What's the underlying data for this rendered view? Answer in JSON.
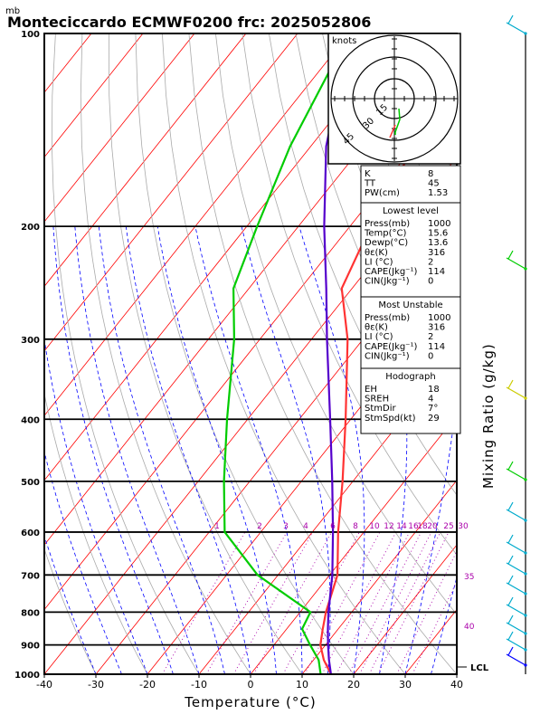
{
  "title": "Monteciccardo ECMWF0200  frc: 2025052806",
  "yunit": "mb",
  "xlabel": "Temperature (°C)",
  "right_label": "Mixing Ratio (g/kg)",
  "lcl_label": "LCL",
  "colors": {
    "temperature": "#ff3333",
    "dewpoint": "#00cc00",
    "parcel": "#5500cc",
    "isotherm": "#ff0000",
    "dry_adiabat": "#aaaaaa",
    "moist_adiabat": "#0000ff",
    "mixing": "#aa00aa",
    "wind": "#00aacc"
  },
  "hodograph": {
    "unit": "knots",
    "rings": [
      "15",
      "30",
      "45"
    ]
  },
  "index_box": [
    {
      "label": "K",
      "value": "8"
    },
    {
      "label": "TT",
      "value": "45"
    },
    {
      "label": "PW(cm)",
      "value": "1.53"
    }
  ],
  "lowest_level": {
    "header": "Lowest level",
    "rows": [
      {
        "label": "Press(mb)",
        "value": "1000"
      },
      {
        "label": "Temp(°C)",
        "value": "15.6"
      },
      {
        "label": "Dewp(°C)",
        "value": "13.6"
      },
      {
        "label": "θε(K)",
        "value": "316"
      },
      {
        "label": "LI (°C)",
        "value": "2"
      },
      {
        "label": "CAPE(Jkg⁻¹)",
        "value": "114"
      },
      {
        "label": "CIN(Jkg⁻¹)",
        "value": "0"
      }
    ]
  },
  "most_unstable": {
    "header": "Most Unstable",
    "rows": [
      {
        "label": "Press(mb)",
        "value": "1000"
      },
      {
        "label": "θε(K)",
        "value": "316"
      },
      {
        "label": "LI (°C)",
        "value": "2"
      },
      {
        "label": "CAPE(Jkg⁻¹)",
        "value": "114"
      },
      {
        "label": "CIN(Jkg⁻¹)",
        "value": "0"
      }
    ]
  },
  "hodograph_box": {
    "header": "Hodograph",
    "rows": [
      {
        "label": "EH",
        "value": "18"
      },
      {
        "label": "SREH",
        "value": "4"
      },
      {
        "label": "StmDir",
        "value": "7°"
      },
      {
        "label": "StmSpd(kt)",
        "value": "29"
      }
    ]
  },
  "chart_data": {
    "type": "line",
    "xlabel": "Temperature (°C)",
    "ylabel": "mb",
    "xlim": [
      -40,
      40
    ],
    "ylim": [
      1000,
      100
    ],
    "x_ticks": [
      "-40",
      "-30",
      "-20",
      "-10",
      "0",
      "10",
      "20",
      "30",
      "40"
    ],
    "y_ticks": [
      "100",
      "200",
      "300",
      "400",
      "500",
      "600",
      "700",
      "800",
      "900",
      "1000"
    ],
    "mixing_ratio_labels": [
      "1",
      "2",
      "3",
      "4",
      "6",
      "8",
      "10",
      "12",
      "14",
      "16",
      "18",
      "20",
      "25",
      "30"
    ],
    "side_labels": [
      "35",
      "40"
    ],
    "series": [
      {
        "key": "temperature",
        "points": [
          [
            1000,
            15.6
          ],
          [
            950,
            12
          ],
          [
            900,
            9
          ],
          [
            850,
            7
          ],
          [
            800,
            5
          ],
          [
            700,
            1.5
          ],
          [
            600,
            -5
          ],
          [
            500,
            -12
          ],
          [
            400,
            -21
          ],
          [
            300,
            -33
          ],
          [
            250,
            -42
          ],
          [
            200,
            -46
          ],
          [
            150,
            -50
          ],
          [
            100,
            -54
          ]
        ]
      },
      {
        "key": "dewpoint",
        "points": [
          [
            1000,
            13.6
          ],
          [
            950,
            11
          ],
          [
            900,
            7
          ],
          [
            850,
            3
          ],
          [
            800,
            2
          ],
          [
            700,
            -14
          ],
          [
            600,
            -27
          ],
          [
            500,
            -35
          ],
          [
            400,
            -44
          ],
          [
            300,
            -55
          ],
          [
            250,
            -63
          ],
          [
            200,
            -68
          ],
          [
            150,
            -74
          ],
          [
            100,
            -80
          ]
        ]
      },
      {
        "key": "parcel",
        "points": [
          [
            1000,
            15.6
          ],
          [
            950,
            13
          ],
          [
            900,
            10.5
          ],
          [
            850,
            8
          ],
          [
            800,
            5.5
          ],
          [
            700,
            0.5
          ],
          [
            600,
            -6
          ],
          [
            500,
            -14
          ],
          [
            400,
            -24
          ],
          [
            300,
            -37
          ],
          [
            250,
            -45
          ],
          [
            200,
            -55
          ],
          [
            150,
            -67
          ],
          [
            100,
            -80
          ]
        ]
      }
    ]
  }
}
